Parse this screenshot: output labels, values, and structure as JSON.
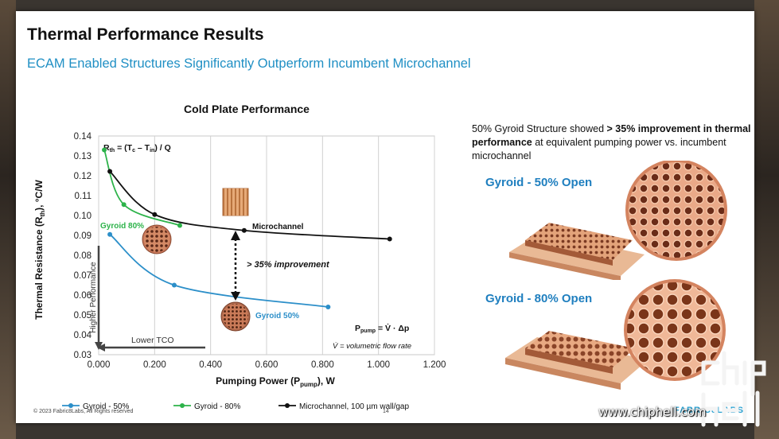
{
  "slide": {
    "title": "Thermal Performance Results",
    "subtitle": "ECAM Enabled Structures Significantly Outperform Incumbent Microchannel",
    "footer_left": "© 2023 Fabric8Labs, All Rights reserved",
    "page_number": "14",
    "brand": "FABRIC8LABS",
    "watermark": "www.chiphell.com"
  },
  "note": {
    "part1": "50% Gyroid Structure showed ",
    "bold1": "> 35% improvement in thermal performance",
    "part2": " at equivalent pumping power vs. incumbent microchannel"
  },
  "structures": [
    {
      "label": "Gyroid - 50% Open"
    },
    {
      "label": "Gyroid - 80% Open"
    }
  ],
  "colors": {
    "gyroid50": "#2c8fc9",
    "gyroid80": "#2db34a",
    "microchannel": "#111111",
    "accent": "#1f8fc4",
    "copper": "#d98b5f"
  },
  "chart_data": {
    "type": "line",
    "title": "Cold Plate Performance",
    "xlabel": "Pumping Power (P_pump), W",
    "ylabel": "Thermal Resistance (R_th), °C/W",
    "xlim": [
      0,
      1.2
    ],
    "ylim": [
      0.03,
      0.14
    ],
    "x_ticks": [
      "0.000",
      "0.200",
      "0.400",
      "0.600",
      "0.800",
      "1.000",
      "1.200"
    ],
    "y_ticks": [
      "0.03",
      "0.04",
      "0.05",
      "0.06",
      "0.07",
      "0.08",
      "0.09",
      "0.10",
      "0.11",
      "0.12",
      "0.13",
      "0.14"
    ],
    "grid": "vertical",
    "legend_position": "bottom",
    "series": [
      {
        "name": "Gyroid - 50%",
        "color": "#2c8fc9",
        "points": [
          [
            0.04,
            0.0905
          ],
          [
            0.27,
            0.065
          ],
          [
            0.82,
            0.054
          ]
        ]
      },
      {
        "name": "Gyroid - 80%",
        "color": "#2db34a",
        "points": [
          [
            0.02,
            0.133
          ],
          [
            0.09,
            0.1055
          ],
          [
            0.29,
            0.095
          ]
        ]
      },
      {
        "name": "Microchannel, 100 µm wall/gap",
        "color": "#111111",
        "points": [
          [
            0.04,
            0.1222
          ],
          [
            0.2,
            0.1005
          ],
          [
            0.52,
            0.0925
          ],
          [
            1.04,
            0.0882
          ]
        ]
      }
    ],
    "annotations": {
      "formula": "R_th = (T_c − T_in) / Q",
      "pump_formula": "P_pump = V̇ · Δp",
      "flow_note": "V̇ = volumetric flow rate",
      "improvement": "> 35% improvement",
      "higher_performance": "Higher Performance",
      "lower_tco": "Lower TCO",
      "label_gyroid80": "Gyroid 80%",
      "label_gyroid50": "Gyroid 50%",
      "label_microchannel": "Microchannel"
    }
  }
}
